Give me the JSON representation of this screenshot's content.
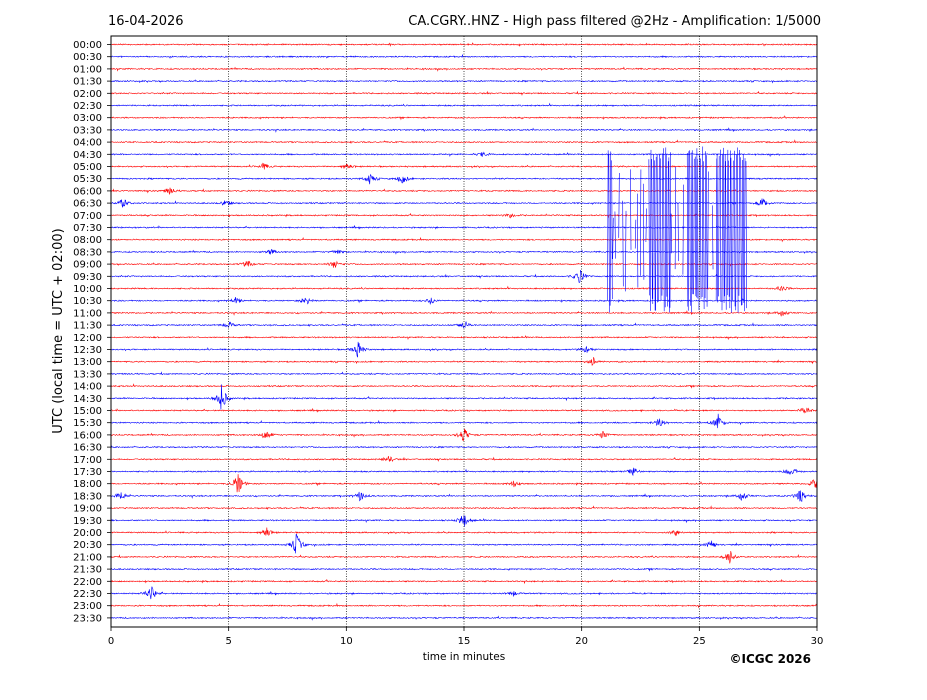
{
  "chart_data": {
    "type": "line",
    "subtype": "helicorder",
    "date": "16-04-2026",
    "title": "CA.CGRY..HNZ - High pass filtered @2Hz - Amplification: 1/5000",
    "xlabel": "time in minutes",
    "ylabel": "UTC (local time = UTC + 02:00)",
    "copyright": "©ICGC 2026",
    "xlim": [
      0,
      30
    ],
    "x_ticks": [
      "0",
      "5",
      "10",
      "15",
      "20",
      "25",
      "30"
    ],
    "x_tick_values": [
      0,
      5,
      10,
      15,
      20,
      25,
      30
    ],
    "vertical_grid_minutes": [
      5,
      10,
      15,
      20,
      25
    ],
    "grid": "vertical dotted",
    "row_labels": [
      "00:00",
      "00:30",
      "01:00",
      "01:30",
      "02:00",
      "02:30",
      "03:00",
      "03:30",
      "04:00",
      "04:30",
      "05:00",
      "05:30",
      "06:00",
      "06:30",
      "07:00",
      "07:30",
      "08:00",
      "08:30",
      "09:00",
      "09:30",
      "10:00",
      "10:30",
      "11:00",
      "11:30",
      "12:00",
      "12:30",
      "13:00",
      "13:30",
      "14:00",
      "14:30",
      "15:00",
      "15:30",
      "16:00",
      "16:30",
      "17:00",
      "17:30",
      "18:00",
      "18:30",
      "19:00",
      "19:30",
      "20:00",
      "20:30",
      "21:00",
      "21:30",
      "22:00",
      "22:30",
      "23:00",
      "23:30"
    ],
    "row_colors": [
      "#ff0000",
      "#0000ff"
    ],
    "events": [
      {
        "row": "04:30",
        "minute": 15.8,
        "amplitude": 0.3
      },
      {
        "row": "05:00",
        "minute": 6.5,
        "amplitude": 0.4
      },
      {
        "row": "05:00",
        "minute": 10.0,
        "amplitude": 0.4
      },
      {
        "row": "05:30",
        "minute": 11.0,
        "amplitude": 0.6
      },
      {
        "row": "05:30",
        "minute": 12.4,
        "amplitude": 0.6
      },
      {
        "row": "06:00",
        "minute": 2.5,
        "amplitude": 0.5
      },
      {
        "row": "06:30",
        "minute": 0.5,
        "amplitude": 0.6
      },
      {
        "row": "06:30",
        "minute": 4.9,
        "amplitude": 0.4
      },
      {
        "row": "06:30",
        "minute": 27.7,
        "amplitude": 0.6
      },
      {
        "row": "07:00",
        "minute": 17.0,
        "amplitude": 0.3
      },
      {
        "row": "08:30",
        "minute": 6.8,
        "amplitude": 0.3
      },
      {
        "row": "08:30",
        "minute": 9.6,
        "amplitude": 0.3
      },
      {
        "row": "09:00",
        "minute": 5.8,
        "amplitude": 0.4
      },
      {
        "row": "09:00",
        "minute": 9.5,
        "amplitude": 0.5
      },
      {
        "row": "09:30",
        "minute": 19.9,
        "amplitude": 0.9
      },
      {
        "row": "10:00",
        "minute": 28.5,
        "amplitude": 0.4
      },
      {
        "row": "10:30",
        "minute": 5.3,
        "amplitude": 0.4
      },
      {
        "row": "10:30",
        "minute": 8.3,
        "amplitude": 0.5
      },
      {
        "row": "10:30",
        "minute": 13.6,
        "amplitude": 0.4
      },
      {
        "row": "11:00",
        "minute": 28.5,
        "amplitude": 0.5
      },
      {
        "row": "11:30",
        "minute": 5.0,
        "amplitude": 0.4
      },
      {
        "row": "11:30",
        "minute": 15.0,
        "amplitude": 0.5
      },
      {
        "row": "12:30",
        "minute": 10.5,
        "amplitude": 1.0
      },
      {
        "row": "12:30",
        "minute": 20.2,
        "amplitude": 0.4
      },
      {
        "row": "13:00",
        "minute": 20.5,
        "amplitude": 0.5
      },
      {
        "row": "14:30",
        "minute": 4.7,
        "amplitude": 1.6
      },
      {
        "row": "15:00",
        "minute": 29.5,
        "amplitude": 0.5
      },
      {
        "row": "15:30",
        "minute": 23.3,
        "amplitude": 0.6
      },
      {
        "row": "15:30",
        "minute": 25.8,
        "amplitude": 1.0
      },
      {
        "row": "16:00",
        "minute": 6.6,
        "amplitude": 0.6
      },
      {
        "row": "16:00",
        "minute": 15.0,
        "amplitude": 0.9
      },
      {
        "row": "16:00",
        "minute": 20.9,
        "amplitude": 0.5
      },
      {
        "row": "17:00",
        "minute": 11.8,
        "amplitude": 0.4
      },
      {
        "row": "17:30",
        "minute": 22.2,
        "amplitude": 0.5
      },
      {
        "row": "17:30",
        "minute": 28.9,
        "amplitude": 0.6
      },
      {
        "row": "18:00",
        "minute": 5.4,
        "amplitude": 1.3
      },
      {
        "row": "18:00",
        "minute": 17.1,
        "amplitude": 0.4
      },
      {
        "row": "18:00",
        "minute": 29.9,
        "amplitude": 0.6
      },
      {
        "row": "18:30",
        "minute": 0.4,
        "amplitude": 0.6
      },
      {
        "row": "18:30",
        "minute": 10.6,
        "amplitude": 0.6
      },
      {
        "row": "18:30",
        "minute": 26.8,
        "amplitude": 0.7
      },
      {
        "row": "18:30",
        "minute": 29.3,
        "amplitude": 0.8
      },
      {
        "row": "19:30",
        "minute": 15.0,
        "amplitude": 0.9
      },
      {
        "row": "20:00",
        "minute": 6.6,
        "amplitude": 0.6
      },
      {
        "row": "20:00",
        "minute": 24.0,
        "amplitude": 0.4
      },
      {
        "row": "20:30",
        "minute": 7.9,
        "amplitude": 1.4
      },
      {
        "row": "20:30",
        "minute": 25.5,
        "amplitude": 0.5
      },
      {
        "row": "21:00",
        "minute": 26.3,
        "amplitude": 0.8
      },
      {
        "row": "22:30",
        "minute": 1.7,
        "amplitude": 0.9
      },
      {
        "row": "22:30",
        "minute": 17.1,
        "amplitude": 0.3
      }
    ],
    "large_events": [
      {
        "start_row": "04:30",
        "end_row": "11:00",
        "start_minute": 21.1,
        "end_minute": 27.0
      }
    ]
  }
}
